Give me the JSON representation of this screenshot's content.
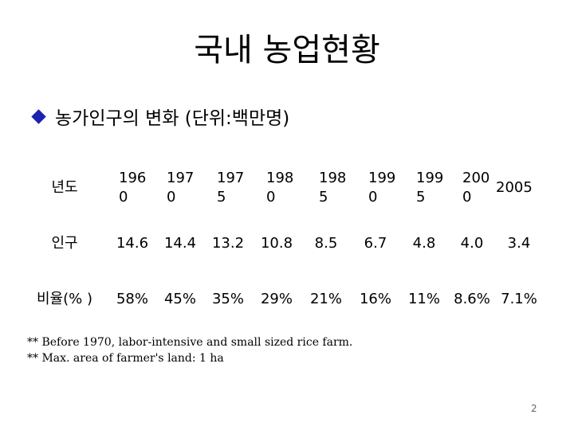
{
  "title": "국내 농업현황",
  "subtitle": "농가인구의 변화 (단위:백만명)",
  "bullet_color": "#1a24b0",
  "table": {
    "rows": [
      {
        "header": "년도",
        "cells": [
          "196\n0",
          "197\n0",
          "197\n5",
          "198\n0",
          "198\n5",
          "199\n0",
          "199\n5",
          "200\n0",
          "2005"
        ]
      },
      {
        "header": "인구",
        "cells": [
          "14.6",
          "14.4",
          "13.2",
          "10.8",
          "8.5",
          "6.7",
          "4.8",
          "4.0",
          "3.4"
        ]
      },
      {
        "header": "비율(% )",
        "cells": [
          "58%",
          "45%",
          "35%",
          "29%",
          "21%",
          "16%",
          "11%",
          "8.6%",
          "7.1%"
        ]
      }
    ]
  },
  "notes": [
    "** Before 1970, labor-intensive and small sized rice farm.",
    "** Max. area of farmer's land: 1 ha"
  ],
  "page_number": "2"
}
